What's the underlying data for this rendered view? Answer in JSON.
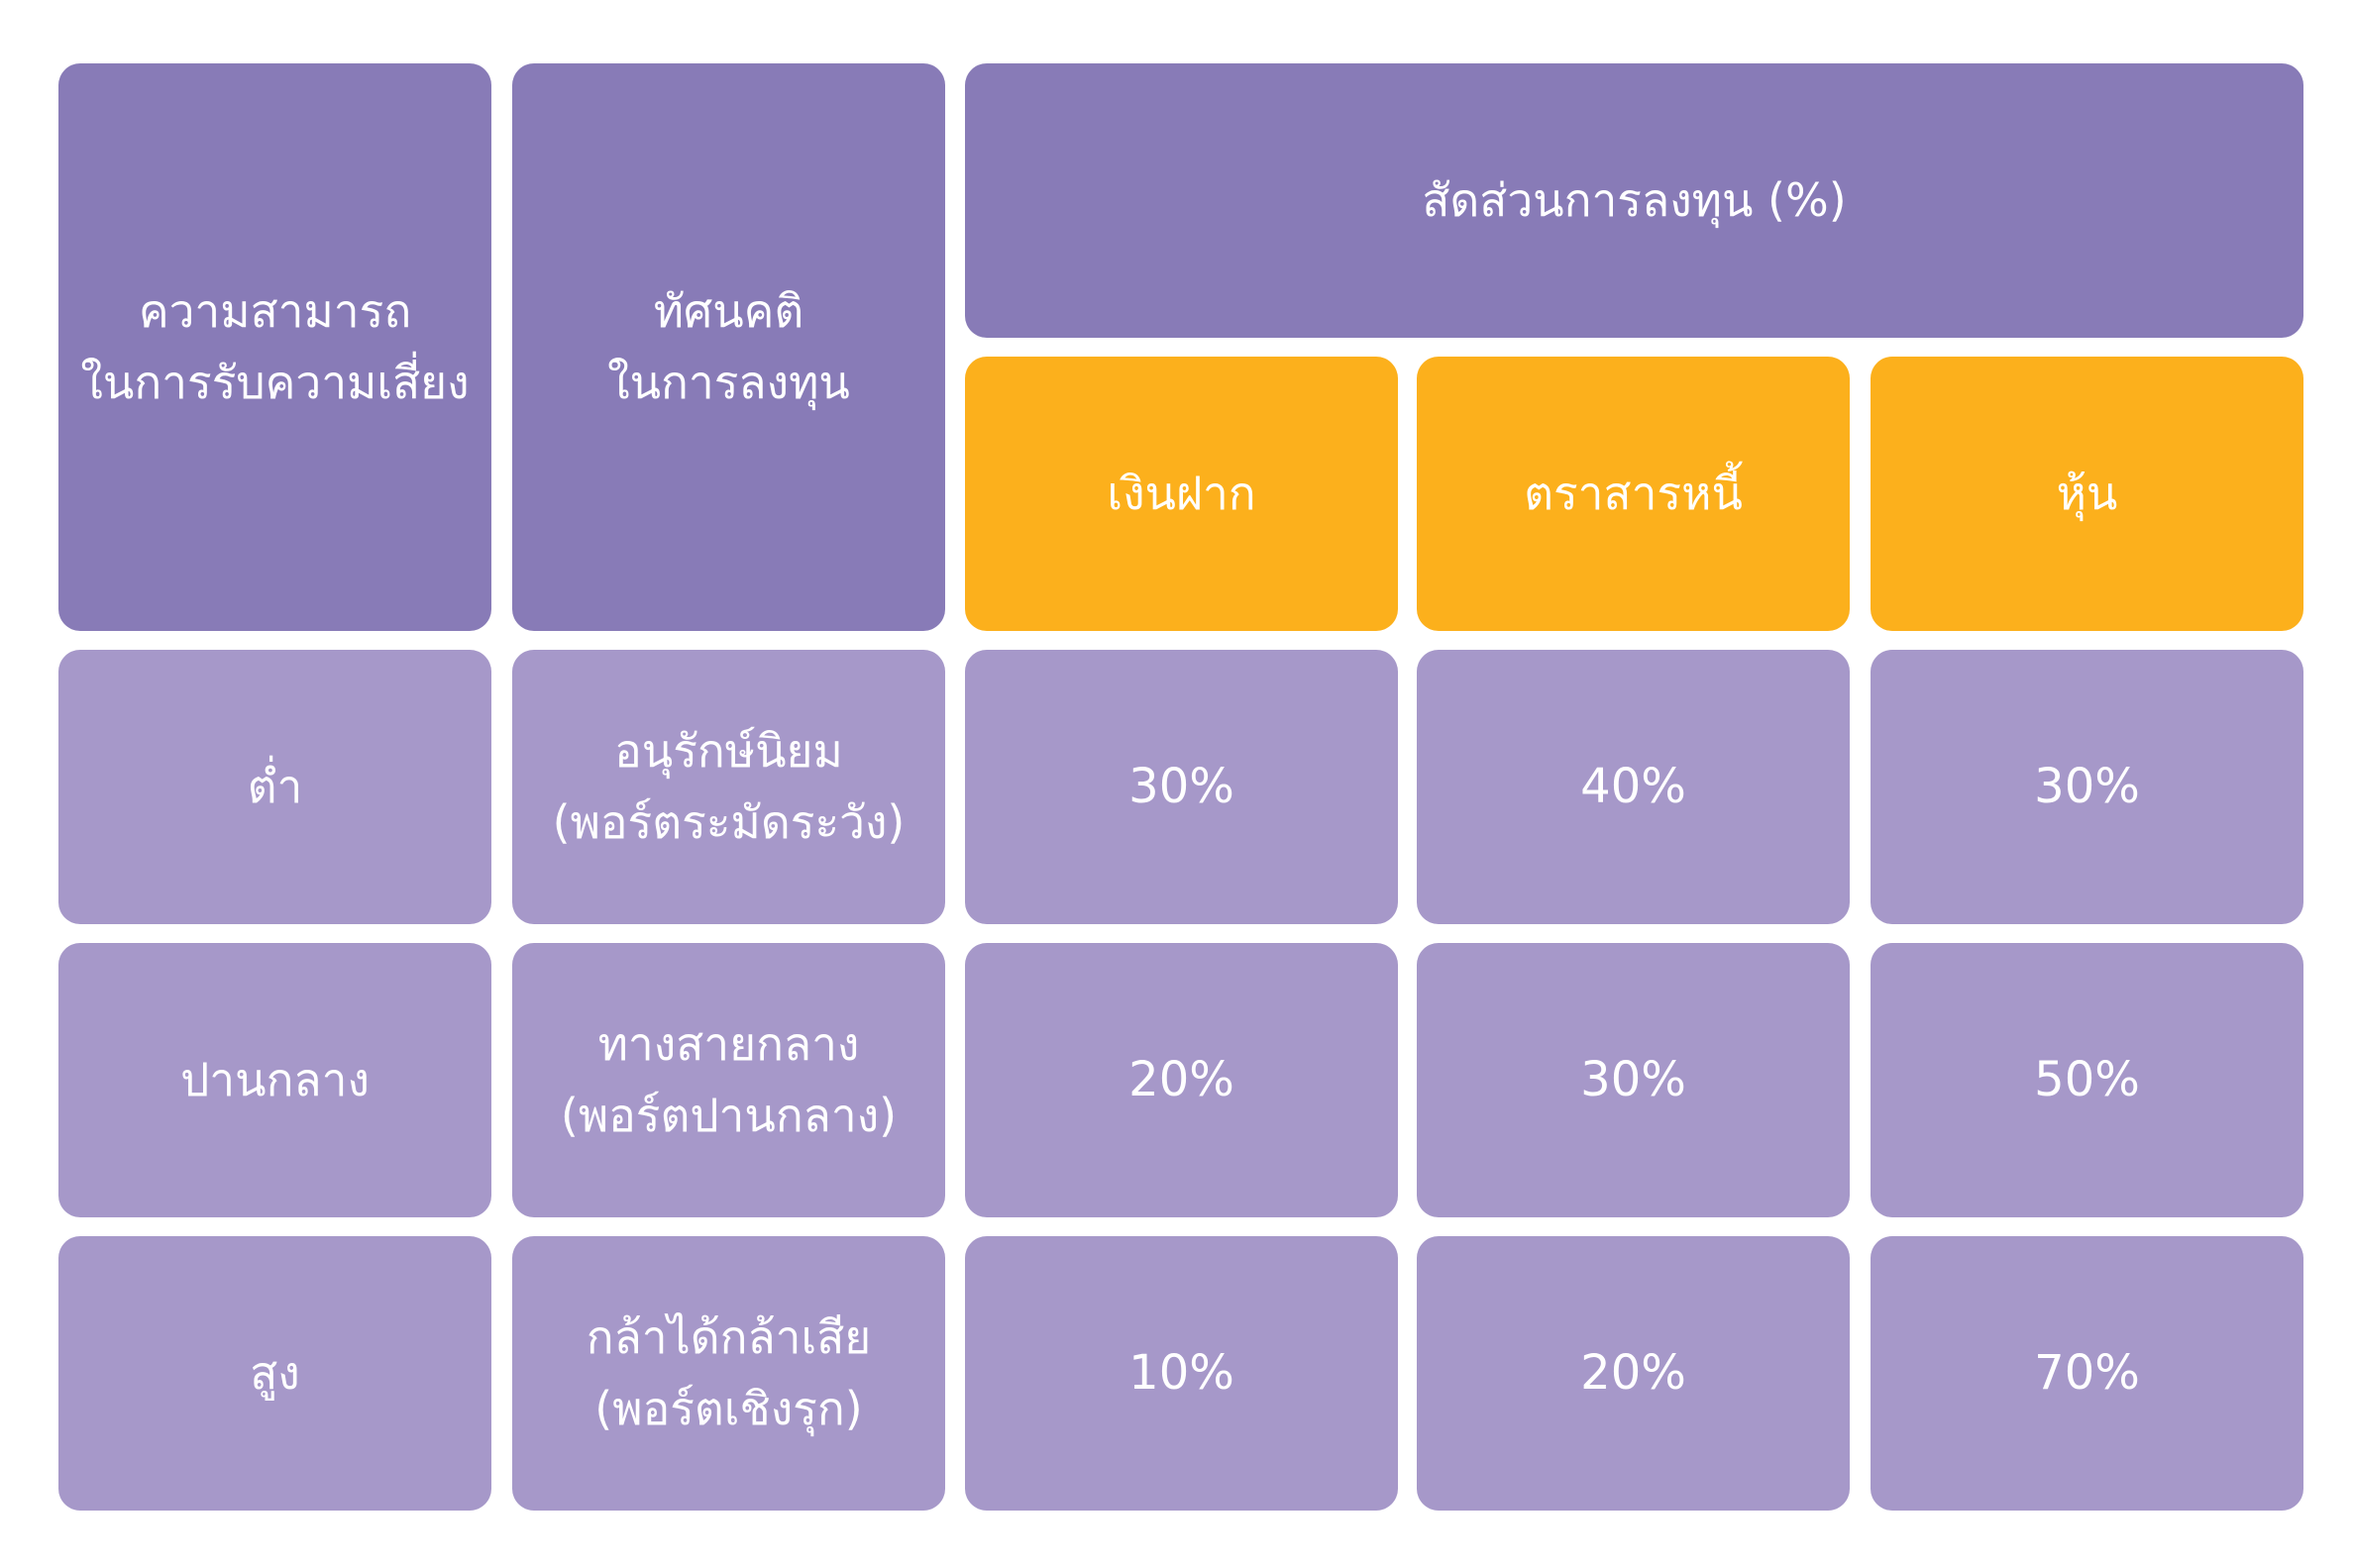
{
  "colors": {
    "header": "#887bb7",
    "subheader": "#fcb01c",
    "body": "#a698c9",
    "text": "#ffffff"
  },
  "header": {
    "risk_capacity": [
      "ความสามารถ",
      "ในการรับความเสี่ยง"
    ],
    "attitude": [
      "ทัศนคติ",
      "ในการลงทุน"
    ],
    "allocation": "สัดส่วนการลงทุน (%)",
    "assets": [
      "เงินฝาก",
      "ตราสารหนี้",
      "หุ้น"
    ]
  },
  "rows": [
    {
      "risk": "ต่ำ",
      "attitude": [
        "อนุรักษ์นิยม",
        "(พอร์ตระมัดระวัง)"
      ],
      "values": [
        "30%",
        "40%",
        "30%"
      ]
    },
    {
      "risk": "ปานกลาง",
      "attitude": [
        "ทางสายกลาง",
        "(พอร์ตปานกลาง)"
      ],
      "values": [
        "20%",
        "30%",
        "50%"
      ]
    },
    {
      "risk": "สูง",
      "attitude": [
        "กล้าได้กล้าเสีย",
        "(พอร์ตเชิงรุก)"
      ],
      "values": [
        "10%",
        "20%",
        "70%"
      ]
    }
  ]
}
